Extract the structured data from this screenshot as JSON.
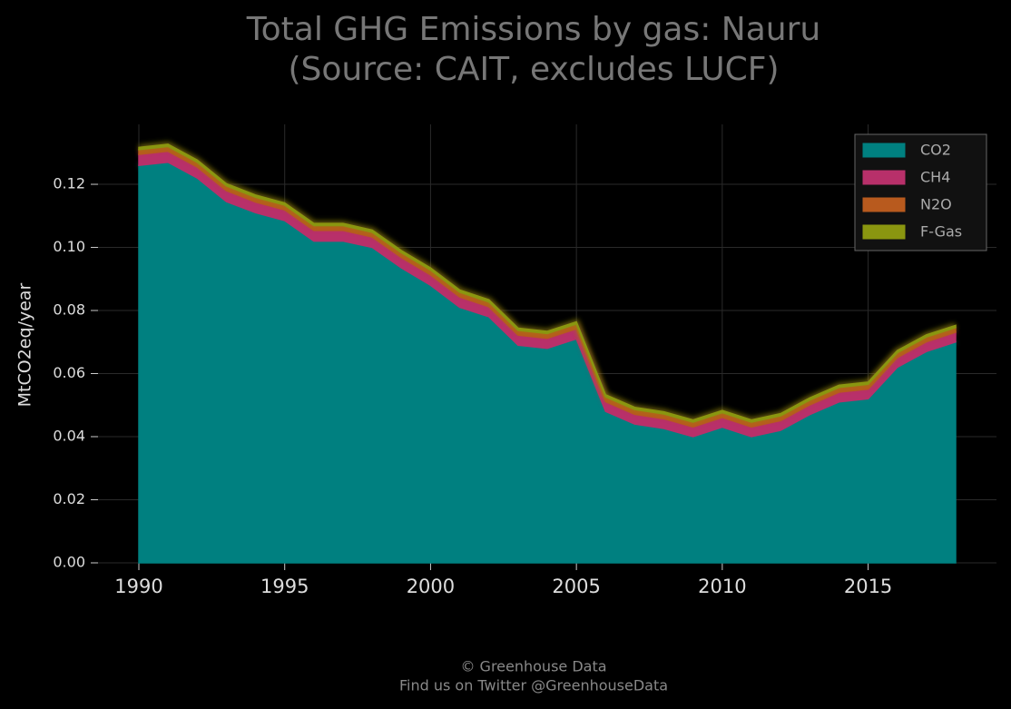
{
  "chart_data": {
    "type": "stacked_area",
    "title": "Total GHG Emissions by gas: Nauru",
    "subtitle": "(Source: CAIT, excludes LUCF)",
    "ylabel": "MtCO2eq/year",
    "x": [
      1990,
      1991,
      1992,
      1993,
      1994,
      1995,
      1996,
      1997,
      1998,
      1999,
      2000,
      2001,
      2002,
      2003,
      2004,
      2005,
      2006,
      2007,
      2008,
      2009,
      2010,
      2011,
      2012,
      2013,
      2014,
      2015,
      2016,
      2017,
      2018
    ],
    "series": [
      {
        "name": "CO2",
        "color": "#008080",
        "values": [
          0.126,
          0.127,
          0.122,
          0.1145,
          0.111,
          0.1085,
          0.102,
          0.102,
          0.1,
          0.0935,
          0.088,
          0.081,
          0.078,
          0.069,
          0.068,
          0.071,
          0.048,
          0.044,
          0.0426,
          0.04,
          0.043,
          0.04,
          0.042,
          0.047,
          0.051,
          0.052,
          0.062,
          0.067,
          0.07
        ]
      },
      {
        "name": "CH4",
        "color": "#b8306a",
        "values": [
          0.0035,
          0.0035,
          0.0035,
          0.0035,
          0.0034,
          0.0034,
          0.0034,
          0.0034,
          0.0033,
          0.0033,
          0.0033,
          0.0033,
          0.0032,
          0.0032,
          0.0032,
          0.0032,
          0.0031,
          0.0031,
          0.0031,
          0.0031,
          0.0031,
          0.0031,
          0.0031,
          0.0031,
          0.0031,
          0.0031,
          0.0031,
          0.0031,
          0.0031
        ]
      },
      {
        "name": "N2O",
        "color": "#b85a1e",
        "values": [
          0.0015,
          0.0015,
          0.0015,
          0.0015,
          0.0015,
          0.0015,
          0.0015,
          0.0015,
          0.0015,
          0.0015,
          0.0015,
          0.0015,
          0.0015,
          0.0015,
          0.0015,
          0.0015,
          0.0015,
          0.0015,
          0.0015,
          0.0015,
          0.0015,
          0.0015,
          0.0015,
          0.0015,
          0.0015,
          0.0015,
          0.0015,
          0.0015,
          0.0015
        ]
      },
      {
        "name": "F-Gas",
        "color": "#8a9610",
        "values": [
          0.0007,
          0.0007,
          0.0007,
          0.0007,
          0.0007,
          0.0007,
          0.0007,
          0.0007,
          0.0007,
          0.0007,
          0.0007,
          0.0007,
          0.0007,
          0.0007,
          0.0007,
          0.0007,
          0.0007,
          0.0007,
          0.0007,
          0.0007,
          0.0007,
          0.0007,
          0.0007,
          0.0007,
          0.0007,
          0.0007,
          0.0007,
          0.0007,
          0.0007
        ]
      }
    ],
    "xlim": [
      1988.6,
      2019.4
    ],
    "xticks": [
      1990,
      1995,
      2000,
      2005,
      2010,
      2015
    ],
    "ylim": [
      0,
      0.139
    ],
    "yticks": [
      {
        "value": 0,
        "label": "0.00"
      },
      {
        "value": 0.02,
        "label": "0.02"
      },
      {
        "value": 0.04,
        "label": "0.04"
      },
      {
        "value": 0.06,
        "label": "0.06"
      },
      {
        "value": 0.08,
        "label": "0.08"
      },
      {
        "value": 0.1,
        "label": "0.10"
      },
      {
        "value": 0.12,
        "label": "0.12"
      }
    ],
    "grid": true,
    "legend": "upper right"
  },
  "footer": [
    "© Greenhouse Data",
    "Find us on Twitter @GreenhouseData"
  ]
}
